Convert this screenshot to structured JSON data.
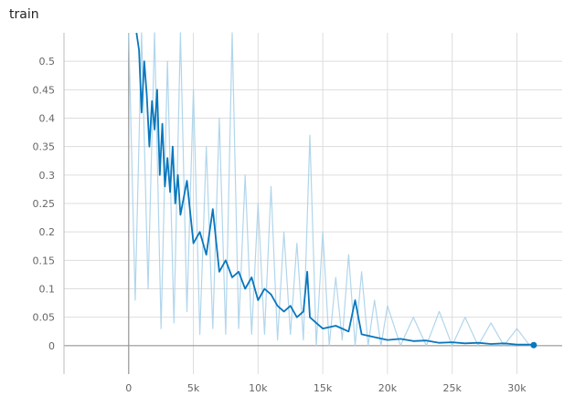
{
  "header": {
    "title": "train"
  },
  "chart_data": {
    "type": "line",
    "title": "train",
    "xlabel": "",
    "ylabel": "",
    "xlim": [
      -5000,
      33500
    ],
    "ylim": [
      -0.05,
      0.55
    ],
    "x_ticks": [
      0,
      5000,
      10000,
      15000,
      20000,
      25000,
      30000
    ],
    "x_tick_labels": [
      "0",
      "5k",
      "10k",
      "15k",
      "20k",
      "25k",
      "30k"
    ],
    "y_ticks": [
      0,
      0.05,
      0.1,
      0.15,
      0.2,
      0.25,
      0.3,
      0.35,
      0.4,
      0.45,
      0.5
    ],
    "y_tick_labels": [
      "0",
      "0.05",
      "0.1",
      "0.15",
      "0.2",
      "0.25",
      "0.3",
      "0.35",
      "0.4",
      "0.45",
      "0.5"
    ],
    "grid": true,
    "colors": {
      "smoothed": "#0877bd",
      "raw": "#a9d2ea",
      "grid": "#dddddd",
      "axis": "#999999"
    },
    "series": [
      {
        "role": "raw",
        "x": [
          0,
          500,
          1000,
          1500,
          2000,
          2500,
          3000,
          3500,
          4000,
          4500,
          5000,
          5500,
          6000,
          6500,
          7000,
          7500,
          8000,
          8500,
          9000,
          9500,
          10000,
          10500,
          11000,
          11500,
          12000,
          12500,
          13000,
          13500,
          14000,
          14500,
          15000,
          15500,
          16000,
          16500,
          17000,
          17500,
          18000,
          18500,
          19000,
          19500,
          20000,
          21000,
          22000,
          23000,
          24000,
          25000,
          26000,
          27000,
          28000,
          29000,
          30000,
          31000,
          31300
        ],
        "y": [
          0.6,
          0.08,
          0.6,
          0.1,
          0.55,
          0.03,
          0.5,
          0.04,
          0.55,
          0.06,
          0.45,
          0.02,
          0.35,
          0.03,
          0.4,
          0.02,
          0.55,
          0.03,
          0.3,
          0.02,
          0.25,
          0.02,
          0.28,
          0.01,
          0.2,
          0.02,
          0.18,
          0.01,
          0.37,
          0.0,
          0.2,
          0.0,
          0.12,
          0.01,
          0.16,
          0.0,
          0.13,
          0.0,
          0.08,
          0.0,
          0.07,
          0.0,
          0.05,
          0.0,
          0.06,
          0.0,
          0.05,
          0.0,
          0.04,
          0.0,
          0.03,
          0.0,
          0.005
        ]
      },
      {
        "role": "smoothed",
        "x": [
          600,
          800,
          1000,
          1200,
          1400,
          1600,
          1800,
          2000,
          2200,
          2400,
          2600,
          2800,
          3000,
          3200,
          3400,
          3600,
          3800,
          4000,
          4500,
          5000,
          5500,
          6000,
          6500,
          7000,
          7500,
          8000,
          8500,
          9000,
          9500,
          10000,
          10500,
          11000,
          11500,
          12000,
          12500,
          13000,
          13500,
          13800,
          14000,
          14500,
          15000,
          16000,
          17000,
          17500,
          18000,
          19000,
          20000,
          21000,
          22000,
          23000,
          24000,
          25000,
          26000,
          27000,
          28000,
          29000,
          30000,
          31000,
          31300
        ],
        "y": [
          0.55,
          0.52,
          0.41,
          0.5,
          0.44,
          0.35,
          0.43,
          0.38,
          0.45,
          0.3,
          0.39,
          0.28,
          0.33,
          0.27,
          0.35,
          0.25,
          0.3,
          0.23,
          0.29,
          0.18,
          0.2,
          0.16,
          0.24,
          0.13,
          0.15,
          0.12,
          0.13,
          0.1,
          0.12,
          0.08,
          0.1,
          0.09,
          0.07,
          0.06,
          0.07,
          0.05,
          0.06,
          0.13,
          0.05,
          0.04,
          0.03,
          0.035,
          0.025,
          0.08,
          0.02,
          0.015,
          0.01,
          0.012,
          0.008,
          0.009,
          0.005,
          0.006,
          0.004,
          0.005,
          0.003,
          0.004,
          0.002,
          0.002,
          0.001
        ]
      }
    ],
    "last_point": {
      "x": 31300,
      "y": 0.001
    }
  }
}
